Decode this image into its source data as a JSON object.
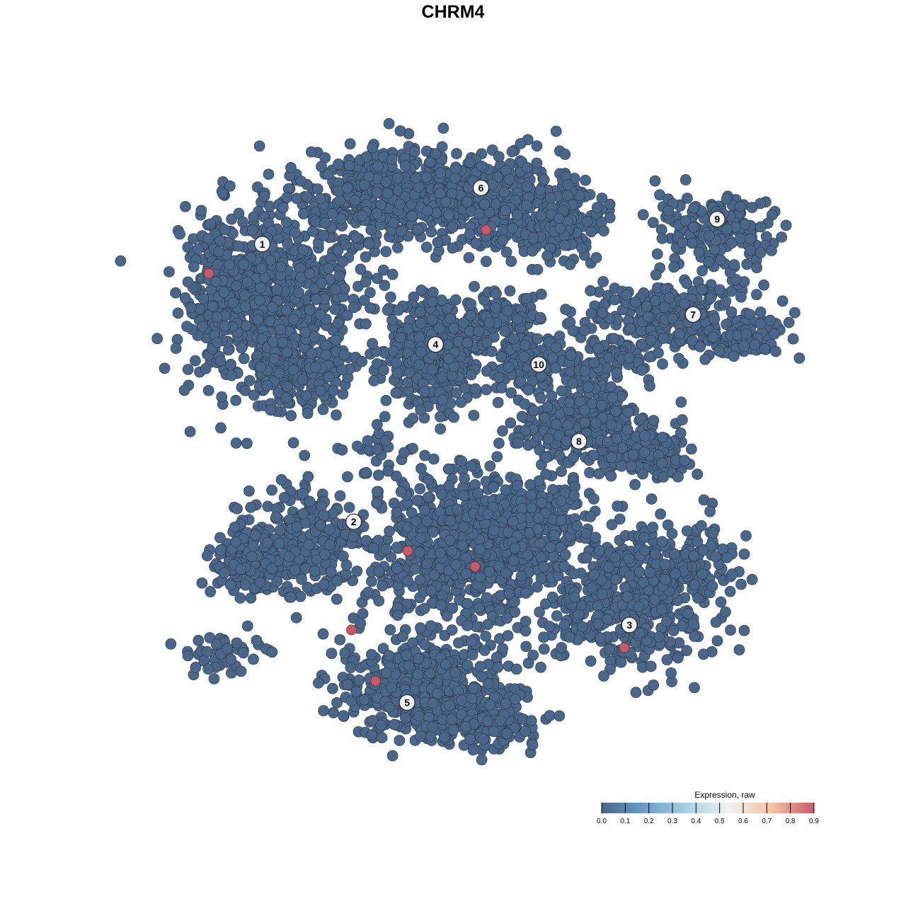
{
  "chart_data": {
    "type": "scatter",
    "title": "CHRM4",
    "xlabel": "",
    "ylabel": "",
    "xlim": [
      -45,
      45
    ],
    "ylim": [
      -45,
      45
    ],
    "grid": false,
    "axes_visible": false,
    "point_color_low": "#4a6689",
    "point_color_high": "#c8596a",
    "cluster_labels": [
      {
        "label": "1",
        "x": -28.5,
        "y": 29.1
      },
      {
        "label": "2",
        "x": -16.0,
        "y": -9.9
      },
      {
        "label": "3",
        "x": 21.7,
        "y": -24.4
      },
      {
        "label": "4",
        "x": -4.8,
        "y": 15.0
      },
      {
        "label": "5",
        "x": -8.7,
        "y": -35.3
      },
      {
        "label": "6",
        "x": 1.4,
        "y": 37.0
      },
      {
        "label": "7",
        "x": 30.4,
        "y": 19.2
      },
      {
        "label": "8",
        "x": 14.8,
        "y": 1.4
      },
      {
        "label": "9",
        "x": 33.7,
        "y": 32.6
      },
      {
        "label": "10",
        "x": 9.3,
        "y": 12.2
      }
    ],
    "expressing_cells": [
      {
        "x": -35.8,
        "y": 25.0,
        "value": 0.9
      },
      {
        "x": 2.1,
        "y": 31.1,
        "value": 0.9
      },
      {
        "x": -8.6,
        "y": -14.0,
        "value": 0.9
      },
      {
        "x": 0.6,
        "y": -16.2,
        "value": 0.9
      },
      {
        "x": -16.3,
        "y": -25.1,
        "value": 0.9
      },
      {
        "x": -13.0,
        "y": -32.3,
        "value": 0.9
      },
      {
        "x": 21.0,
        "y": -27.6,
        "value": 0.9
      }
    ],
    "background_cell_value": 0.0,
    "legend": {
      "title": "Expression, raw",
      "position": "bottom-right",
      "ticks": [
        "0.0",
        "0.1",
        "0.2",
        "0.3",
        "0.4",
        "0.5",
        "0.6",
        "0.7",
        "0.8",
        "0.9"
      ],
      "colors": [
        "#4a6689",
        "#6a9dc8",
        "#a9d0e3",
        "#f1f1f1",
        "#f6c2a7",
        "#c8596a"
      ]
    }
  }
}
